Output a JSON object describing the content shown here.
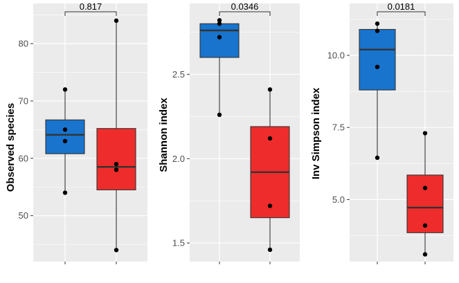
{
  "chart_data": [
    {
      "type": "box",
      "title": "",
      "xlabel": "",
      "ylabel": "Observed species",
      "ylim": [
        42,
        87
      ],
      "yticks": [
        50,
        60,
        70,
        80
      ],
      "grid": true,
      "groups": [
        {
          "color": "#1874cd",
          "q1": 60.8,
          "median": 64.1,
          "q3": 66.7,
          "whisker_low": 54,
          "whisker_high": 72,
          "points": [
            54,
            63,
            65,
            72
          ]
        },
        {
          "color": "#ee2c2c",
          "q1": 54.5,
          "median": 58.5,
          "q3": 65.2,
          "whisker_low": 44,
          "whisker_high": 84,
          "points": [
            44,
            58,
            59,
            84
          ]
        }
      ],
      "comparison": {
        "label": "0.817"
      }
    },
    {
      "type": "box",
      "title": "",
      "xlabel": "",
      "ylabel": "Shannon index",
      "ylim": [
        1.39,
        2.92
      ],
      "yticks": [
        1.5,
        2.0,
        2.5
      ],
      "yticklabels": [
        "1.5",
        "2.0",
        "2.5"
      ],
      "grid": true,
      "groups": [
        {
          "color": "#1874cd",
          "q1": 2.6,
          "median": 2.76,
          "q3": 2.8,
          "whisker_low": 2.26,
          "whisker_high": 2.82,
          "points": [
            2.26,
            2.72,
            2.8,
            2.82
          ]
        },
        {
          "color": "#ee2c2c",
          "q1": 1.65,
          "median": 1.92,
          "q3": 2.19,
          "whisker_low": 1.46,
          "whisker_high": 2.41,
          "points": [
            1.46,
            1.72,
            2.12,
            2.41
          ]
        }
      ],
      "comparison": {
        "label": "0.0346"
      }
    },
    {
      "type": "box",
      "title": "",
      "xlabel": "",
      "ylabel": "Inv Simpson index",
      "ylim": [
        2.85,
        11.8
      ],
      "yticks": [
        5.0,
        7.5,
        10.0
      ],
      "yticklabels": [
        "5.0",
        "7.5",
        "10.0"
      ],
      "grid": true,
      "groups": [
        {
          "color": "#1874cd",
          "q1": 8.8,
          "median": 10.2,
          "q3": 10.9,
          "whisker_low": 6.45,
          "whisker_high": 11.1,
          "points": [
            6.45,
            9.6,
            10.85,
            11.1
          ]
        },
        {
          "color": "#ee2c2c",
          "q1": 3.85,
          "median": 4.72,
          "q3": 5.85,
          "whisker_low": 3.1,
          "whisker_high": 7.3,
          "points": [
            3.1,
            4.1,
            5.4,
            7.3
          ]
        }
      ],
      "comparison": {
        "label": "0.0181"
      }
    }
  ]
}
